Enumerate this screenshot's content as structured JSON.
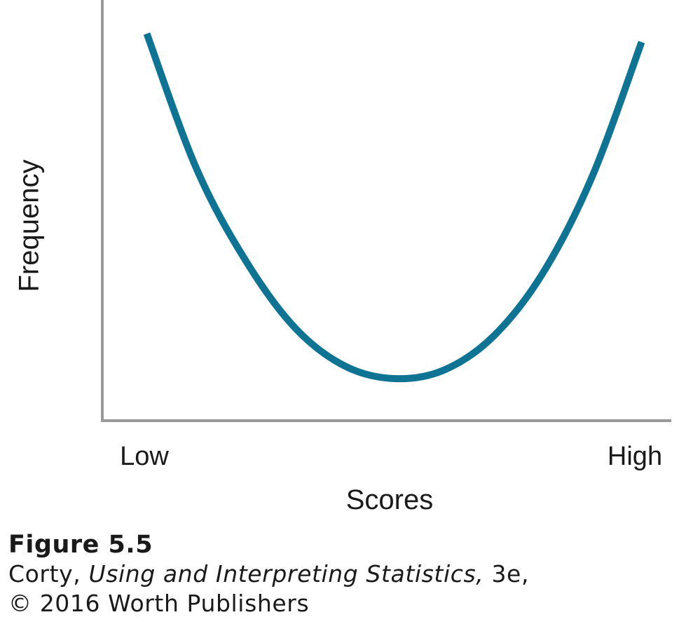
{
  "chart_data": {
    "type": "line",
    "title": "",
    "xlabel": "Scores",
    "ylabel": "Frequency",
    "x_tick_labels": [
      "Low",
      "High"
    ],
    "x": [
      0.0,
      0.1,
      0.2,
      0.3,
      0.4,
      0.5,
      0.6,
      0.7,
      0.8,
      0.9,
      1.0
    ],
    "series": [
      {
        "values": [
          0.92,
          0.6,
          0.38,
          0.22,
          0.13,
          0.1,
          0.12,
          0.2,
          0.35,
          0.58,
          0.9
        ]
      }
    ],
    "xlim": [
      -0.09,
      1.06
    ],
    "ylim": [
      0,
      1
    ],
    "grid": false,
    "line_color": "#0f7394",
    "axis_color": "#9a9a9a"
  },
  "caption": {
    "label": "Figure 5.5",
    "author": "Corty, ",
    "book_title": "Using and Interpreting Statistics,",
    "edition": " 3e,",
    "copyright": "© 2016 Worth Publishers"
  }
}
